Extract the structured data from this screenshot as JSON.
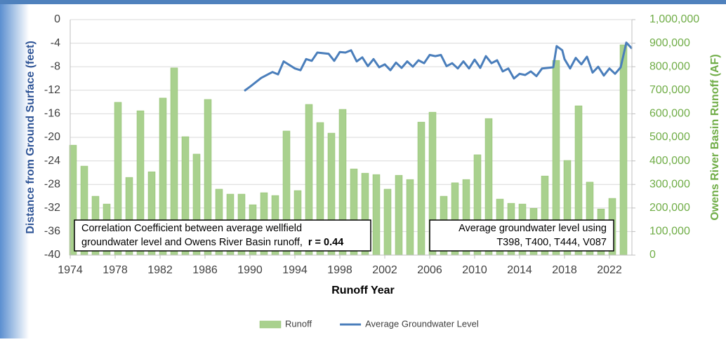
{
  "chart_data": {
    "type": "combo",
    "x_label": "Runoff Year",
    "y_label": "Distance from Ground Surface (feet)",
    "y2_label": "Owens River Basin Runoff (AF)",
    "xlim": [
      1974,
      2024
    ],
    "xticks": [
      1974,
      1978,
      1982,
      1986,
      1990,
      1994,
      1998,
      2002,
      2006,
      2010,
      2014,
      2018,
      2022
    ],
    "ylim": [
      -40,
      0
    ],
    "yticks": [
      0,
      -4,
      -8,
      -12,
      -16,
      -20,
      -24,
      -28,
      -32,
      -36,
      -40
    ],
    "y2lim": [
      0,
      1000000
    ],
    "y2ticks": [
      {
        "value": 1000000,
        "label": "1,000,000"
      },
      {
        "value": 900000,
        "label": "900,000"
      },
      {
        "value": 800000,
        "label": "800,000"
      },
      {
        "value": 700000,
        "label": "700,000"
      },
      {
        "value": 600000,
        "label": "600,000"
      },
      {
        "value": 500000,
        "label": "500,000"
      },
      {
        "value": 400000,
        "label": "400,000"
      },
      {
        "value": 300000,
        "label": "300,000"
      },
      {
        "value": 200000,
        "label": "200,000"
      },
      {
        "value": 100000,
        "label": "100,000"
      },
      0
    ],
    "grid": true,
    "legend": "bottom",
    "series": [
      {
        "name": "Runoff",
        "type": "bar",
        "axis": "y2",
        "color": "#a9d18e",
        "x": [
          1974,
          1975,
          1976,
          1977,
          1978,
          1979,
          1980,
          1981,
          1982,
          1983,
          1984,
          1985,
          1986,
          1987,
          1988,
          1989,
          1990,
          1991,
          1992,
          1993,
          1994,
          1995,
          1996,
          1997,
          1998,
          1999,
          2000,
          2001,
          2002,
          2003,
          2004,
          2005,
          2006,
          2007,
          2008,
          2009,
          2010,
          2011,
          2012,
          2013,
          2014,
          2015,
          2016,
          2017,
          2018,
          2019,
          2020,
          2021,
          2022,
          2023
        ],
        "values": [
          467000,
          378000,
          250000,
          217000,
          649000,
          330000,
          613000,
          354000,
          667000,
          795000,
          503000,
          429000,
          661000,
          280000,
          259000,
          259000,
          214000,
          265000,
          253000,
          527000,
          274000,
          640000,
          563000,
          518000,
          619000,
          366000,
          348000,
          342000,
          280000,
          339000,
          321000,
          565000,
          607000,
          250000,
          307000,
          321000,
          426000,
          580000,
          238000,
          220000,
          217000,
          199000,
          336000,
          827000,
          402000,
          634000,
          310000,
          196000,
          241000,
          893000
        ]
      },
      {
        "name": "Average Groundwater Level",
        "type": "line",
        "color": "#4a7ebb",
        "x": [
          1989.5,
          1990,
          1991,
          1992,
          1992.5,
          1993,
          1994,
          1994.5,
          1995,
          1995.5,
          1996,
          1997,
          1997.5,
          1998,
          1998.5,
          1999,
          1999.5,
          2000,
          2000.5,
          2001,
          2001.5,
          2002,
          2002.5,
          2003,
          2003.5,
          2004,
          2004.5,
          2005,
          2005.5,
          2006,
          2006.5,
          2007,
          2007.5,
          2008,
          2008.5,
          2009,
          2009.5,
          2010,
          2010.5,
          2011,
          2011.5,
          2012,
          2012.5,
          2013,
          2013.5,
          2014,
          2014.5,
          2015,
          2015.5,
          2016,
          2017,
          2017.3,
          2017.8,
          2018,
          2018.5,
          2019,
          2019.5,
          2020,
          2020.5,
          2021,
          2021.5,
          2022,
          2022.5,
          2023,
          2023.5,
          2024
        ],
        "values": [
          -12.1,
          -11.4,
          -9.9,
          -8.9,
          -9.3,
          -7.1,
          -8.3,
          -8.6,
          -6.7,
          -7.0,
          -5.6,
          -5.8,
          -7.0,
          -5.5,
          -5.6,
          -5.2,
          -7.1,
          -6.4,
          -7.9,
          -6.7,
          -8.1,
          -7.6,
          -8.6,
          -7.3,
          -8.2,
          -7.1,
          -8.0,
          -6.9,
          -7.4,
          -6.0,
          -6.2,
          -6.0,
          -7.9,
          -7.4,
          -8.3,
          -7.1,
          -8.3,
          -6.8,
          -8.2,
          -6.2,
          -7.4,
          -6.9,
          -8.8,
          -8.3,
          -10.0,
          -9.2,
          -9.4,
          -8.8,
          -9.6,
          -8.3,
          -8.1,
          -4.5,
          -5.2,
          -6.7,
          -8.3,
          -6.5,
          -7.6,
          -6.3,
          -9.0,
          -8.0,
          -9.5,
          -8.3,
          -9.2,
          -8.1,
          -3.9,
          -4.9
        ]
      }
    ],
    "annotations": [
      {
        "lines": [
          "Correlation Coefficient between average wellfield",
          "groundwater level and Owens River Basin runoff,"
        ],
        "emphasis": "r = 0.44"
      },
      {
        "lines": [
          "Average groundwater level using",
          "T398, T400,  T444, V087"
        ]
      }
    ]
  }
}
